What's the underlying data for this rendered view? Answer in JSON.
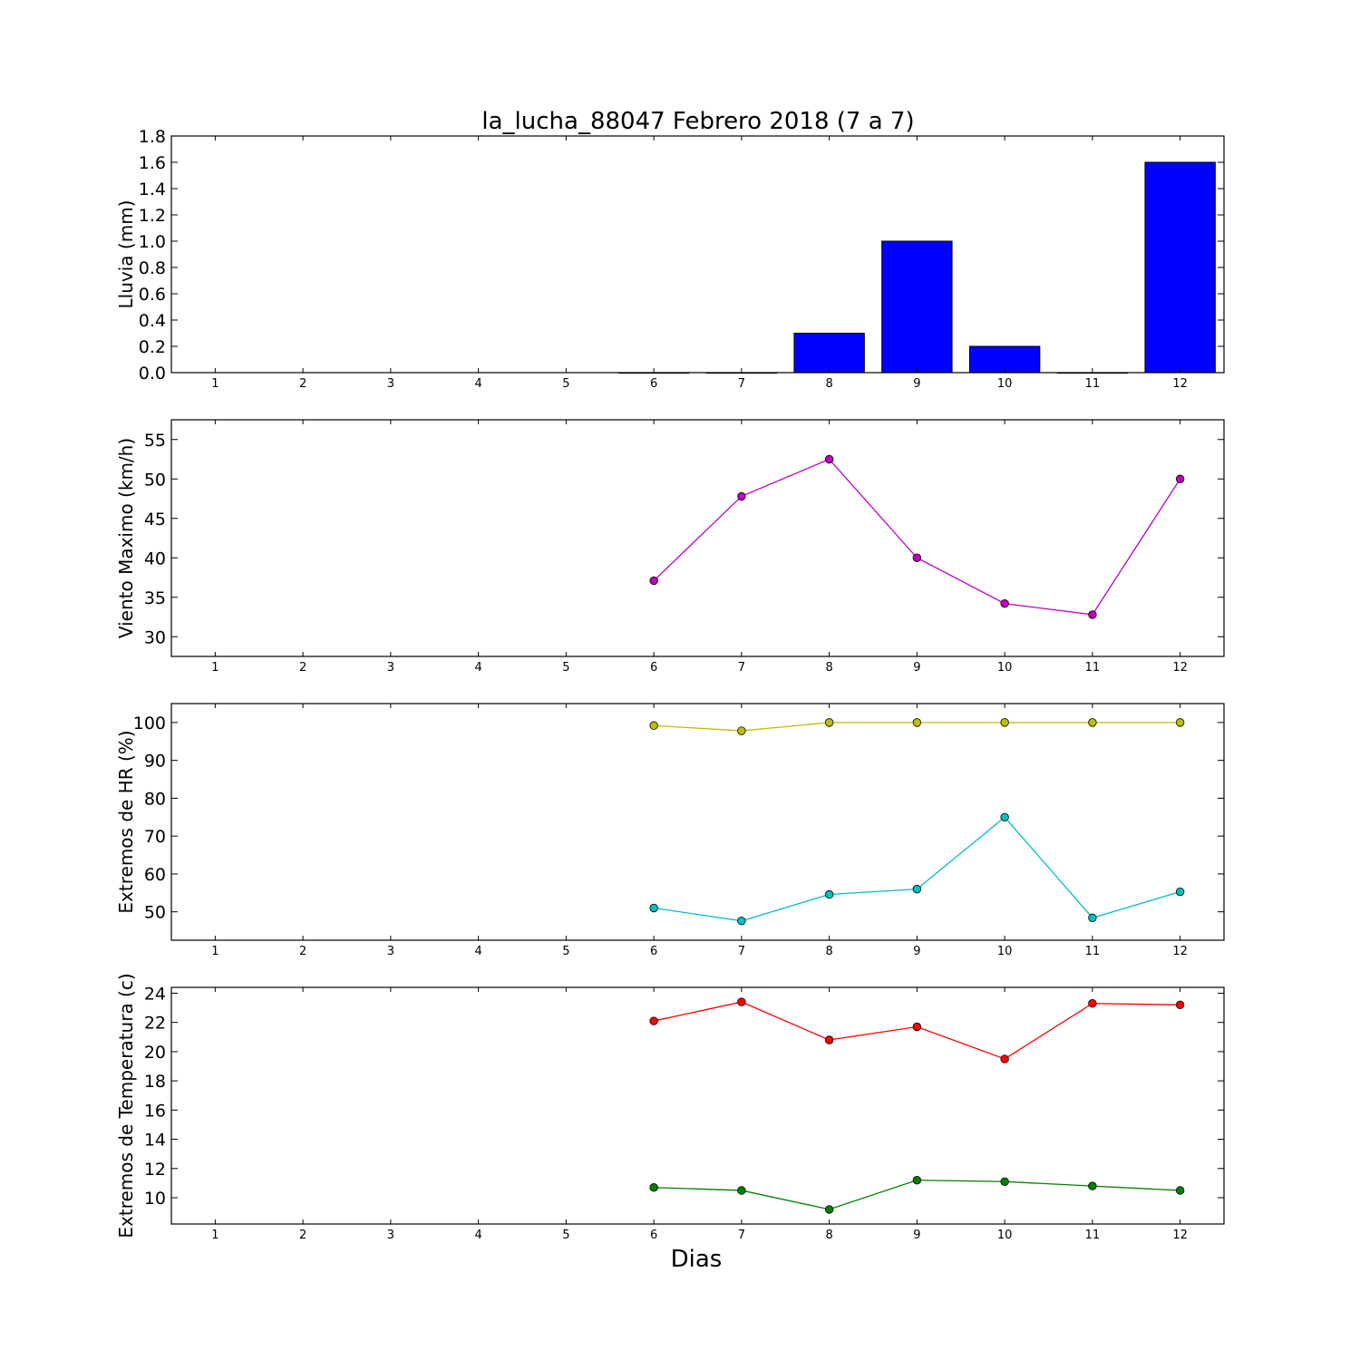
{
  "chart_data": {
    "title": "la_lucha_88047 Febrero 2018  (7 a 7)",
    "xlabel": "Dias",
    "days": [
      1,
      2,
      3,
      4,
      5,
      6,
      7,
      8,
      9,
      10,
      11,
      12
    ],
    "xlim": [
      0.5,
      12.5
    ],
    "panels": [
      {
        "type": "bar",
        "ylabel": "Lluvia (mm)",
        "ylim": [
          0,
          1.8
        ],
        "yticks": [
          "0.0",
          "0.2",
          "0.4",
          "0.6",
          "0.8",
          "1.0",
          "1.2",
          "1.4",
          "1.6",
          "1.8"
        ],
        "series": [
          {
            "color": "#0000ff",
            "x": [
              6,
              7,
              8,
              9,
              10,
              11,
              12
            ],
            "values": [
              0,
              0,
              0.3,
              1.0,
              0.2,
              0,
              1.6
            ]
          }
        ]
      },
      {
        "type": "line",
        "ylabel": "Viento Maximo (km/h)",
        "ylim": [
          27.5,
          57.5
        ],
        "yticks": [
          "30",
          "35",
          "40",
          "45",
          "50",
          "55"
        ],
        "series": [
          {
            "color": "#bf00bf",
            "x": [
              6,
              7,
              8,
              9,
              10,
              11,
              12
            ],
            "values": [
              37.1,
              47.8,
              52.5,
              40.0,
              34.2,
              32.8,
              50.0
            ]
          }
        ]
      },
      {
        "type": "line",
        "ylabel": "Extremos de HR (%)",
        "ylim": [
          42.5,
          105
        ],
        "yticks": [
          "50",
          "60",
          "70",
          "80",
          "90",
          "100"
        ],
        "series": [
          {
            "color": "#bfbf00",
            "x": [
              6,
              7,
              8,
              9,
              10,
              11,
              12
            ],
            "values": [
              99.2,
              97.8,
              100,
              100,
              100,
              100,
              100
            ]
          },
          {
            "color": "#00bfbf",
            "x": [
              6,
              7,
              8,
              9,
              10,
              11,
              12
            ],
            "values": [
              51.0,
              47.6,
              54.6,
              56.0,
              75.0,
              48.4,
              55.3
            ]
          }
        ]
      },
      {
        "type": "line",
        "ylabel": "Extremos de Temperatura (c)",
        "ylim": [
          8.2,
          24.4
        ],
        "yticks": [
          "10",
          "12",
          "14",
          "16",
          "18",
          "20",
          "22",
          "24"
        ],
        "series": [
          {
            "color": "#ff0000",
            "x": [
              6,
              7,
              8,
              9,
              10,
              11,
              12
            ],
            "values": [
              22.1,
              23.4,
              20.8,
              21.7,
              19.5,
              23.3,
              23.2
            ]
          },
          {
            "color": "#008000",
            "x": [
              6,
              7,
              8,
              9,
              10,
              11,
              12
            ],
            "values": [
              10.7,
              10.5,
              9.2,
              11.2,
              11.1,
              10.8,
              10.5
            ]
          }
        ]
      }
    ]
  }
}
